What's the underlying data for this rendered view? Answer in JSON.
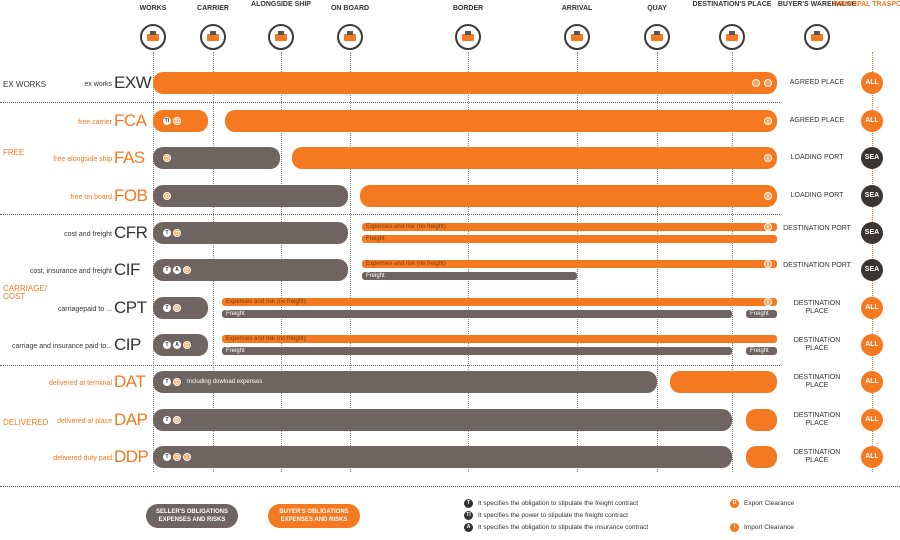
{
  "columns": [
    {
      "key": "works",
      "title": "WORKS",
      "icon": "factory-icon"
    },
    {
      "key": "carrier",
      "title": "CARRIER",
      "icon": "truck-loading-icon"
    },
    {
      "key": "alongside",
      "title": "ALONGSIDE SHIP",
      "icon": "crane-icon"
    },
    {
      "key": "onboard",
      "title": "ON BOARD",
      "icon": "ship-icon"
    },
    {
      "key": "border",
      "title": "BORDER",
      "icon": "border-icon"
    },
    {
      "key": "arrival",
      "title": "ARRIVAL",
      "icon": "ship-arrival-icon"
    },
    {
      "key": "quay",
      "title": "QUAY",
      "icon": "crane-icon"
    },
    {
      "key": "destination",
      "title": "DESTINATION'S PLACE",
      "icon": "target-icon"
    },
    {
      "key": "warehouse",
      "title": "BUYER'S WAREHAUSE",
      "icon": "warehouse-icon"
    },
    {
      "key": "transport",
      "title": "PRINCIPAL TRASPORT",
      "icon": ""
    }
  ],
  "groups": [
    {
      "label": "EX WORKS",
      "color": "#333333"
    },
    {
      "label": "FREE",
      "color": "#f47920"
    },
    {
      "label": "CARRIAGE/ COST",
      "color": "#f47920"
    },
    {
      "label": "DELIVERED",
      "color": "#f47920"
    }
  ],
  "rows": [
    {
      "code": "EXW",
      "name": "ex works",
      "color": "#333333",
      "place": "AGREED PLACE",
      "transport": "ALL",
      "marks": [
        {
          "t": "D",
          "o": true
        },
        {
          "t": "I",
          "o": true
        }
      ],
      "notes": []
    },
    {
      "code": "FCA",
      "name": "free carrier",
      "color": "#f47920",
      "place": "AGREED PLACE",
      "transport": "ALL",
      "marks": [
        {
          "t": "TI",
          "o": false
        },
        {
          "t": "D",
          "o": true
        },
        {
          "t": "I",
          "o": true
        }
      ],
      "notes": []
    },
    {
      "code": "FAS",
      "name": "free alongside ship",
      "color": "#f47920",
      "place": "LOADING PORT",
      "transport": "SEA",
      "marks": [
        {
          "t": "D",
          "o": true
        },
        {
          "t": "I",
          "o": true
        }
      ],
      "notes": []
    },
    {
      "code": "FOB",
      "name": "free on board",
      "color": "#f47920",
      "place": "LOADING PORT",
      "transport": "SEA",
      "marks": [
        {
          "t": "D",
          "o": true
        },
        {
          "t": "I",
          "o": true
        }
      ],
      "notes": []
    },
    {
      "code": "CFR",
      "name": "cost and freight",
      "color": "#333333",
      "place": "DESTINATION PORT",
      "transport": "SEA",
      "marks": [
        {
          "t": "T",
          "o": false
        },
        {
          "t": "D",
          "o": true
        },
        {
          "t": "I",
          "o": true
        }
      ],
      "notes": [
        "Expenses and risk (no freight)",
        "Freight"
      ]
    },
    {
      "code": "CIF",
      "name": "cost, insurance and freight",
      "color": "#333333",
      "place": "DESTINATION PORT",
      "transport": "SEA",
      "marks": [
        {
          "t": "T",
          "o": false
        },
        {
          "t": "A",
          "o": false
        },
        {
          "t": "D",
          "o": true
        },
        {
          "t": "I",
          "o": true
        }
      ],
      "notes": [
        "Expenses and risk (no freight)",
        "Freight"
      ]
    },
    {
      "code": "CPT",
      "name": "carriagepaid to ...",
      "color": "#333333",
      "place": "DESTINATION PLACE",
      "transport": "ALL",
      "marks": [
        {
          "t": "T",
          "o": false
        },
        {
          "t": "D",
          "o": true
        },
        {
          "t": "I",
          "o": true
        }
      ],
      "notes": [
        "Expenses and risk (no freight)",
        "Freight",
        "Freight"
      ]
    },
    {
      "code": "CIP",
      "name": "carriage and insurance paid to...",
      "color": "#333333",
      "place": "DESTINATION PLACE",
      "transport": "ALL",
      "marks": [
        {
          "t": "T",
          "o": false
        },
        {
          "t": "A",
          "o": false
        },
        {
          "t": "D",
          "o": true
        }
      ],
      "notes": [
        "Expenses and risk (no freight)",
        "Freight",
        "Freight"
      ]
    },
    {
      "code": "DAT",
      "name": "delivered at terminal",
      "color": "#f47920",
      "place": "DESTINATION PLACE",
      "transport": "ALL",
      "marks": [
        {
          "t": "T",
          "o": false
        },
        {
          "t": "D",
          "o": true
        },
        {
          "t": "I",
          "o": true
        }
      ],
      "notes": [
        "Including dowload expenses"
      ]
    },
    {
      "code": "DAP",
      "name": "delivered at place",
      "color": "#f47920",
      "place": "DESTINATION PLACE",
      "transport": "ALL",
      "marks": [
        {
          "t": "T",
          "o": false
        },
        {
          "t": "D",
          "o": true
        }
      ],
      "notes": []
    },
    {
      "code": "DDP",
      "name": "delivered duty paid",
      "color": "#f47920",
      "place": "DESTINATION PLACE",
      "transport": "ALL",
      "marks": [
        {
          "t": "T",
          "o": false
        },
        {
          "t": "D",
          "o": true
        },
        {
          "t": "I",
          "o": true
        }
      ],
      "notes": []
    }
  ],
  "legend": {
    "seller": "SELLER'S OBLIGATIONS EXPENSES AND RISKS",
    "buyer": "BUYER'S OBLIGATIONS EXPENSES AND RISKS",
    "seller_color": "#6e6461",
    "buyer_color": "#f47920",
    "notes": [
      {
        "sym": "T",
        "text": "It specifies the obligation to stipulate the freight contract"
      },
      {
        "sym": "TI",
        "text": "It specifies the power to stipulate the freight contract"
      },
      {
        "sym": "A",
        "text": "It specifies the obligation to stipulate the insurance contract"
      }
    ],
    "clearance": [
      {
        "sym": "D",
        "text": "Export Clearance"
      },
      {
        "sym": "I",
        "text": "Import Clearance"
      }
    ]
  }
}
